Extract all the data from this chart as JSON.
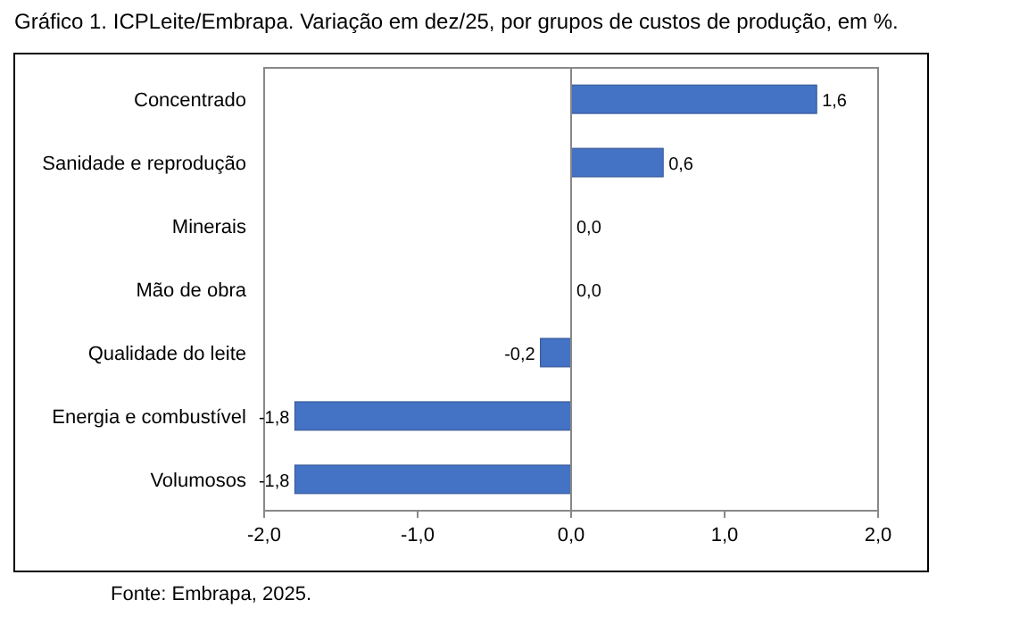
{
  "chart_data": {
    "type": "bar",
    "orientation": "horizontal",
    "title": "Gráfico 1. ICPLeite/Embrapa. Variação em dez/25, por grupos de custos de produção, em %.",
    "categories": [
      "Concentrado",
      "Sanidade e reprodução",
      "Minerais",
      "Mão de obra",
      "Qualidade do leite",
      "Energia e combustível",
      "Volumosos"
    ],
    "values": [
      1.6,
      0.6,
      0.0,
      0.0,
      -0.2,
      -1.8,
      -1.8
    ],
    "value_labels": [
      "1,6",
      "0,6",
      "0,0",
      "0,0",
      "-0,2",
      "-1,8",
      "-1,8"
    ],
    "color": "#4472c4",
    "xlim": [
      -2,
      2
    ],
    "xticks": [
      {
        "value": -2,
        "label": "-2,0"
      },
      {
        "value": -1,
        "label": "-1,0"
      },
      {
        "value": 0,
        "label": "0,0"
      },
      {
        "value": 1,
        "label": "1,0"
      },
      {
        "value": 2,
        "label": "2,0"
      }
    ],
    "annotations": [
      "Fonte: Embrapa, 2025."
    ]
  }
}
